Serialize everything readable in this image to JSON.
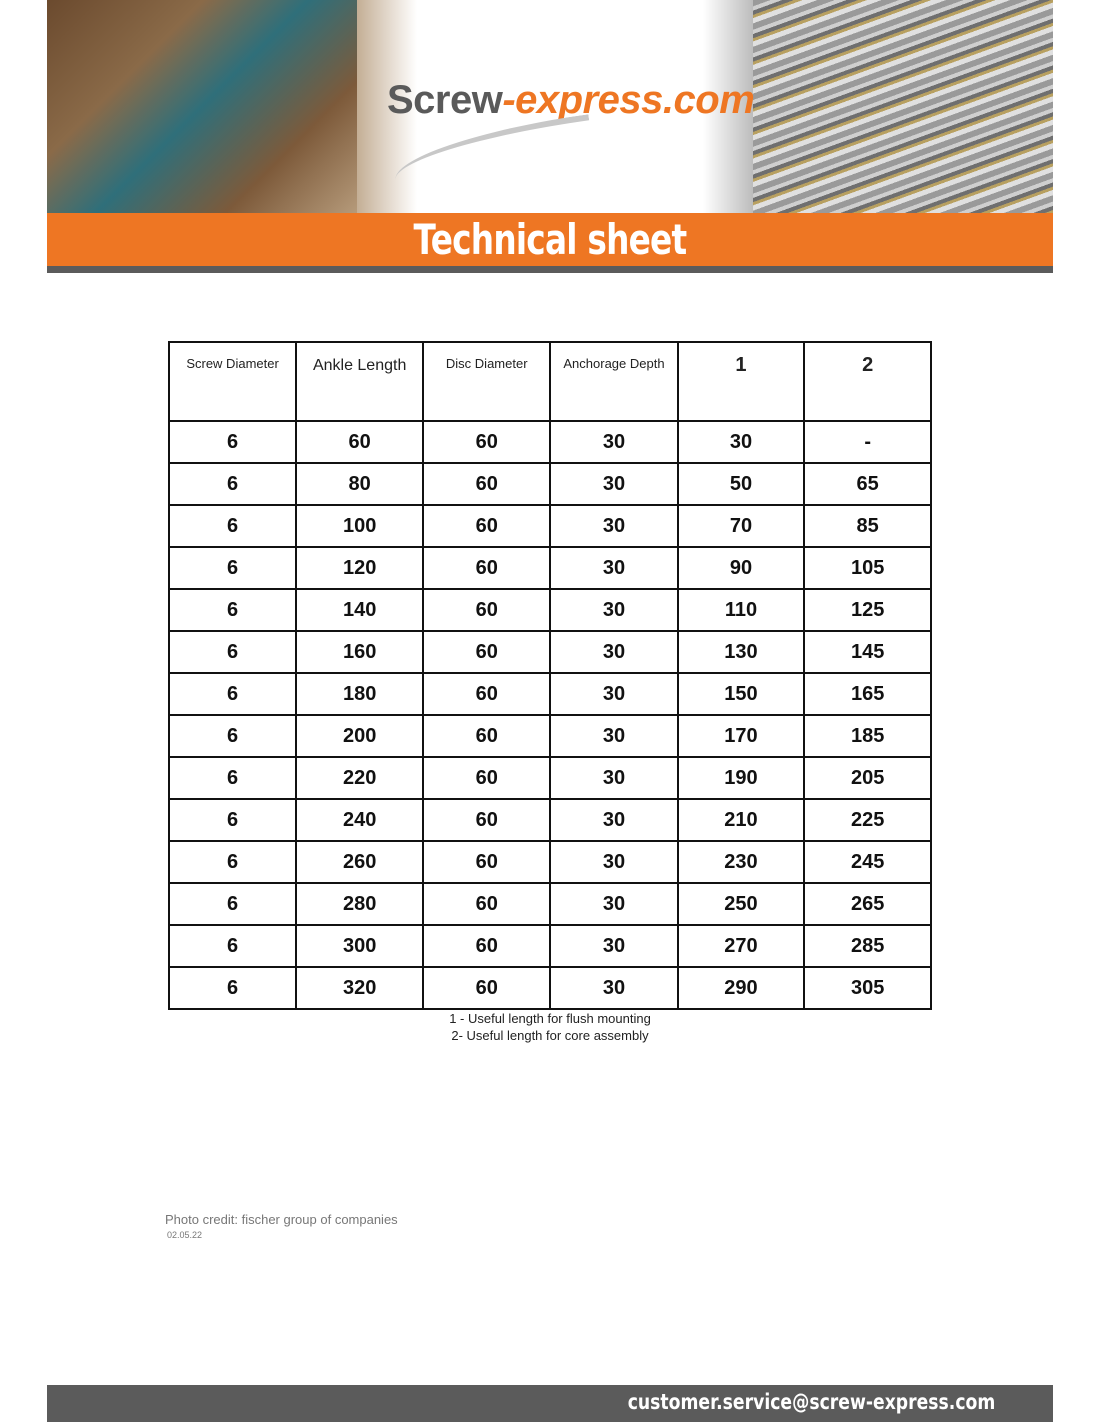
{
  "header": {
    "logo_main": "Screw",
    "logo_accent": "-express.com",
    "title": "Technical sheet"
  },
  "colors": {
    "brand_orange": "#ee7623",
    "bar_gray": "#5b5b5b"
  },
  "table": {
    "headers": [
      "Screw Diameter",
      "Ankle Length",
      "Disc Diameter",
      "Anchorage Depth",
      "1",
      "2"
    ],
    "rows": [
      [
        "6",
        "60",
        "60",
        "30",
        "30",
        "-"
      ],
      [
        "6",
        "80",
        "60",
        "30",
        "50",
        "65"
      ],
      [
        "6",
        "100",
        "60",
        "30",
        "70",
        "85"
      ],
      [
        "6",
        "120",
        "60",
        "30",
        "90",
        "105"
      ],
      [
        "6",
        "140",
        "60",
        "30",
        "110",
        "125"
      ],
      [
        "6",
        "160",
        "60",
        "30",
        "130",
        "145"
      ],
      [
        "6",
        "180",
        "60",
        "30",
        "150",
        "165"
      ],
      [
        "6",
        "200",
        "60",
        "30",
        "170",
        "185"
      ],
      [
        "6",
        "220",
        "60",
        "30",
        "190",
        "205"
      ],
      [
        "6",
        "240",
        "60",
        "30",
        "210",
        "225"
      ],
      [
        "6",
        "260",
        "60",
        "30",
        "230",
        "245"
      ],
      [
        "6",
        "280",
        "60",
        "30",
        "250",
        "265"
      ],
      [
        "6",
        "300",
        "60",
        "30",
        "270",
        "285"
      ],
      [
        "6",
        "320",
        "60",
        "30",
        "290",
        "305"
      ]
    ]
  },
  "notes": [
    "1 - Useful length for flush mounting",
    "2- Useful length for core assembly"
  ],
  "credit": "Photo credit: fischer group of companies",
  "date": "02.05.22",
  "footer": {
    "email": "customer.service@screw-express.com"
  }
}
